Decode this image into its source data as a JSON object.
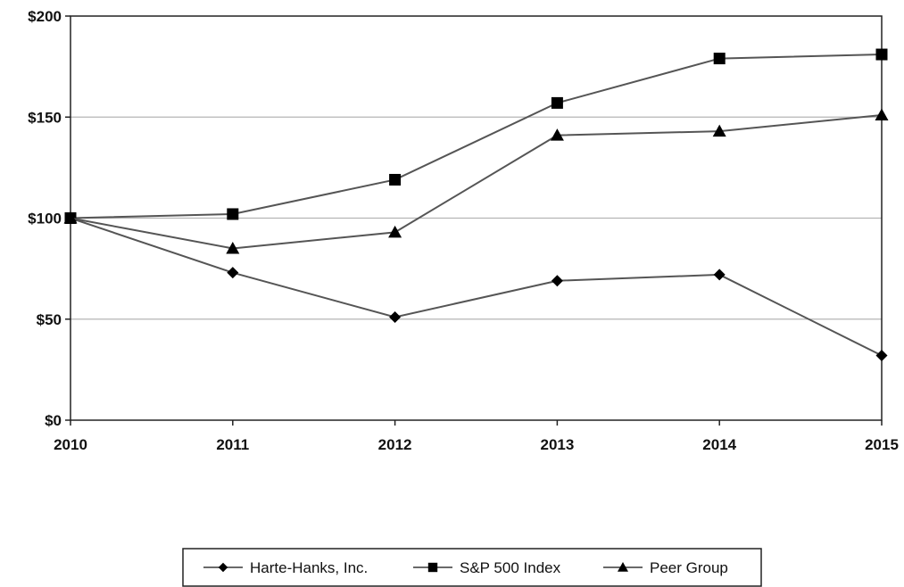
{
  "chart_data": {
    "type": "line",
    "title": "",
    "xlabel": "",
    "ylabel": "",
    "x": [
      "2010",
      "2011",
      "2012",
      "2013",
      "2014",
      "2015"
    ],
    "ylim": [
      0,
      200
    ],
    "yticks": [
      0,
      50,
      100,
      150,
      200
    ],
    "ytick_labels": [
      "$0",
      "$50",
      "$100",
      "$150",
      "$200"
    ],
    "grid": "horizontal",
    "legend_position": "bottom-center",
    "series": [
      {
        "name": "Harte-Hanks, Inc.",
        "marker": "diamond",
        "color": "#555555",
        "values": [
          100,
          73,
          51,
          69,
          72,
          32
        ]
      },
      {
        "name": "S&P 500 Index",
        "marker": "square",
        "color": "#555555",
        "values": [
          100,
          102,
          119,
          157,
          179,
          181
        ]
      },
      {
        "name": "Peer Group",
        "marker": "triangle",
        "color": "#555555",
        "values": [
          100,
          85,
          93,
          141,
          143,
          151
        ]
      }
    ]
  }
}
